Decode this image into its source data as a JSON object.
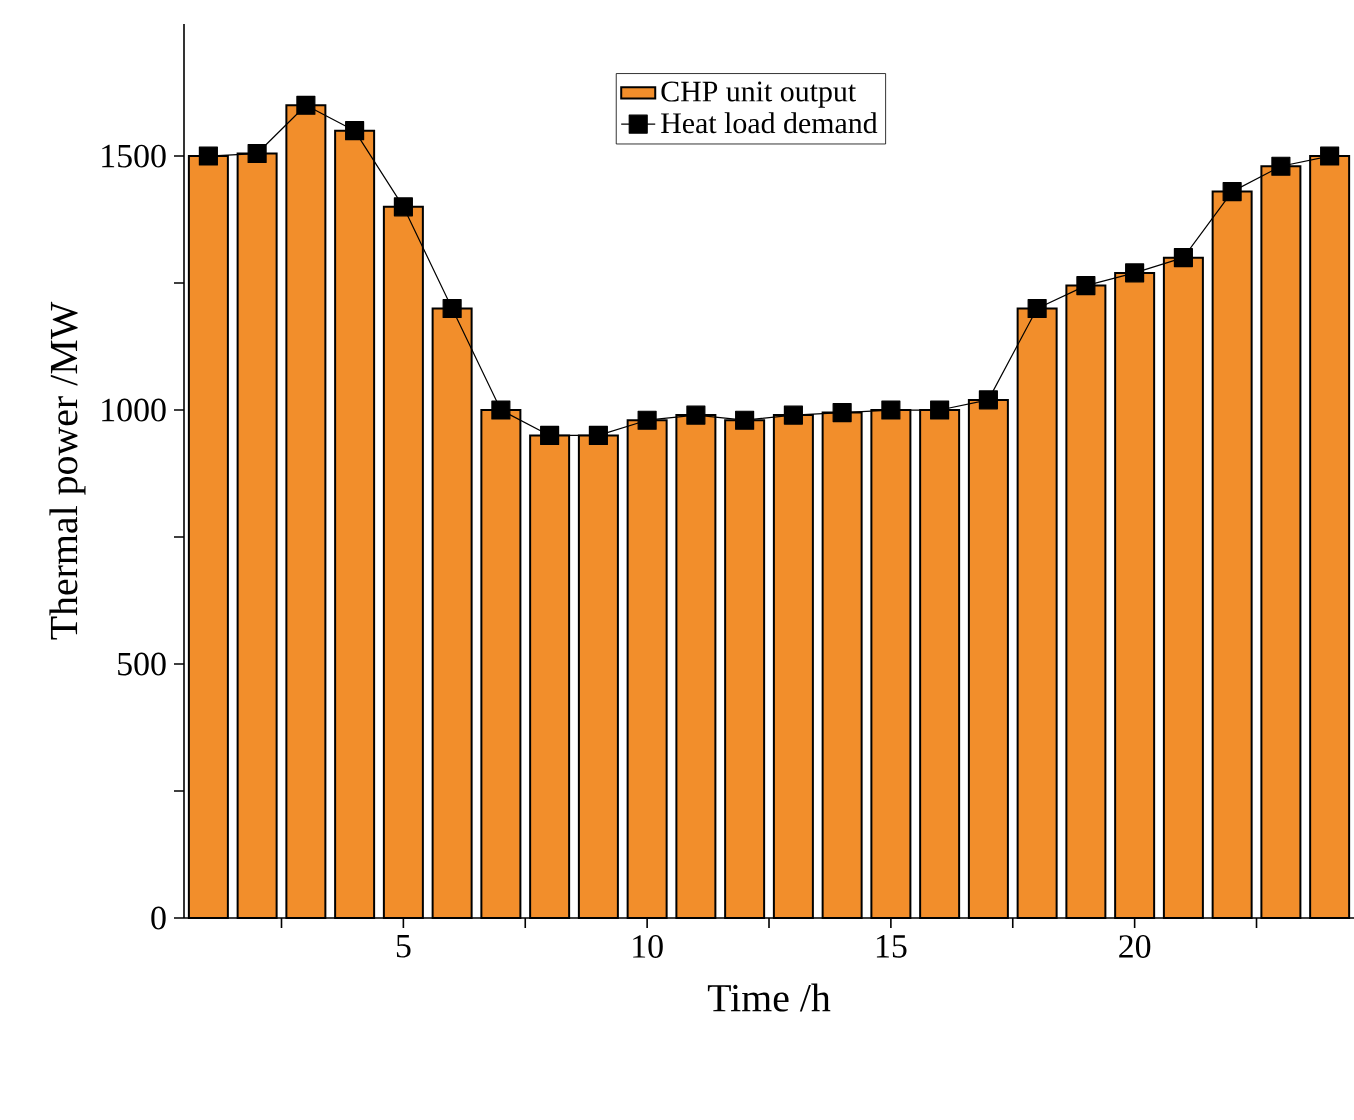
{
  "chart_data": {
    "type": "bar",
    "xlabel": "Time /h",
    "ylabel": "Thermal power /MW",
    "x": [
      1,
      2,
      3,
      4,
      5,
      6,
      7,
      8,
      9,
      10,
      11,
      12,
      13,
      14,
      15,
      16,
      17,
      18,
      19,
      20,
      21,
      22,
      23,
      24
    ],
    "series": [
      {
        "name": "CHP unit output",
        "color": "#f28e2b",
        "values": [
          1500,
          1505,
          1600,
          1550,
          1400,
          1200,
          1000,
          950,
          950,
          980,
          990,
          980,
          990,
          995,
          1000,
          1000,
          1020,
          1200,
          1245,
          1270,
          1300,
          1430,
          1480,
          1500
        ]
      },
      {
        "name": "Heat load demand",
        "type": "line",
        "color": "#000000",
        "marker": "square",
        "values": [
          1500,
          1505,
          1600,
          1550,
          1400,
          1200,
          1000,
          950,
          950,
          980,
          990,
          980,
          990,
          995,
          1000,
          1000,
          1020,
          1200,
          1245,
          1270,
          1300,
          1430,
          1480,
          1500
        ]
      }
    ],
    "xlim": [
      0.5,
      24.5
    ],
    "ylim": [
      0,
      1760
    ],
    "xticks": [
      {
        "value": 2.5,
        "label": null
      },
      5,
      {
        "value": 7.5,
        "label": null
      },
      10,
      {
        "value": 12.5,
        "label": null
      },
      15,
      {
        "value": 17.5,
        "label": null
      },
      20,
      {
        "value": 22.5,
        "label": null
      }
    ],
    "yticks": [
      0,
      {
        "value": 250,
        "label": null
      },
      500,
      {
        "value": 750,
        "label": null
      },
      1000,
      {
        "value": 1250,
        "label": null
      },
      1500
    ],
    "legend": "top",
    "grid": false
  }
}
